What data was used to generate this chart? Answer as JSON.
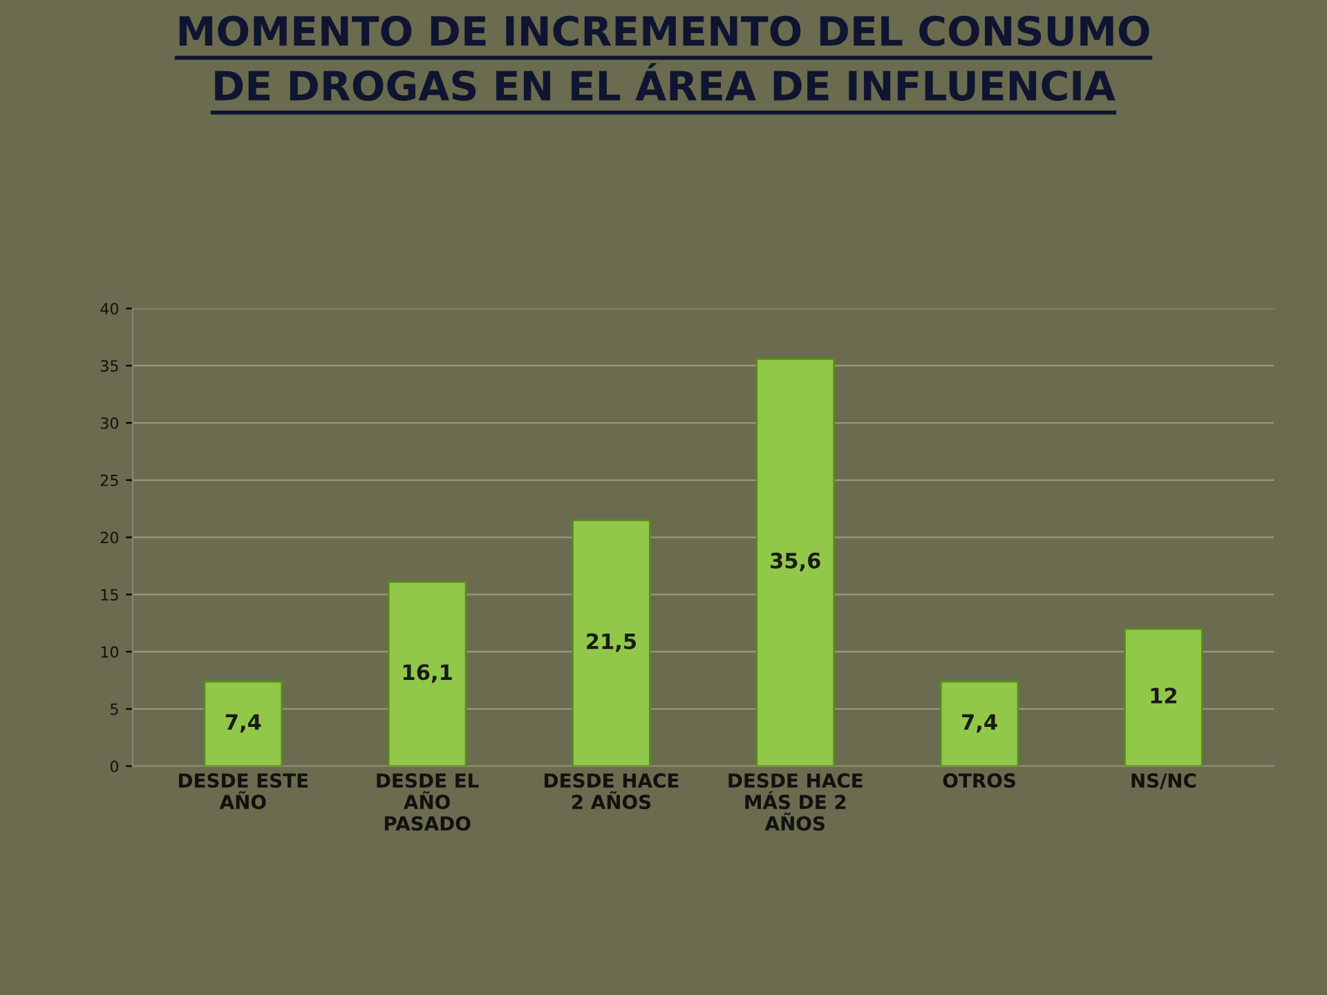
{
  "chart_data": {
    "type": "bar",
    "title": "MOMENTO DE INCREMENTO DEL CONSUMO\nDE DROGAS EN EL ÁREA DE INFLUENCIA",
    "categories": [
      "DESDE ESTE\nAÑO",
      "DESDE EL\nAÑO\nPASADO",
      "DESDE HACE\n2 AÑOS",
      "DESDE HACE\nMÁS DE 2\nAÑOS",
      "OTROS",
      "NS/NC"
    ],
    "values": [
      7.4,
      16.1,
      21.5,
      35.6,
      7.4,
      12
    ],
    "value_labels": [
      "7,4",
      "16,1",
      "21,5",
      "35,6",
      "7,4",
      "12"
    ],
    "color": "#92c84a",
    "ylim": [
      0,
      40
    ],
    "yticks": [
      0,
      5,
      10,
      15,
      20,
      25,
      30,
      35,
      40
    ],
    "grid": "y"
  }
}
